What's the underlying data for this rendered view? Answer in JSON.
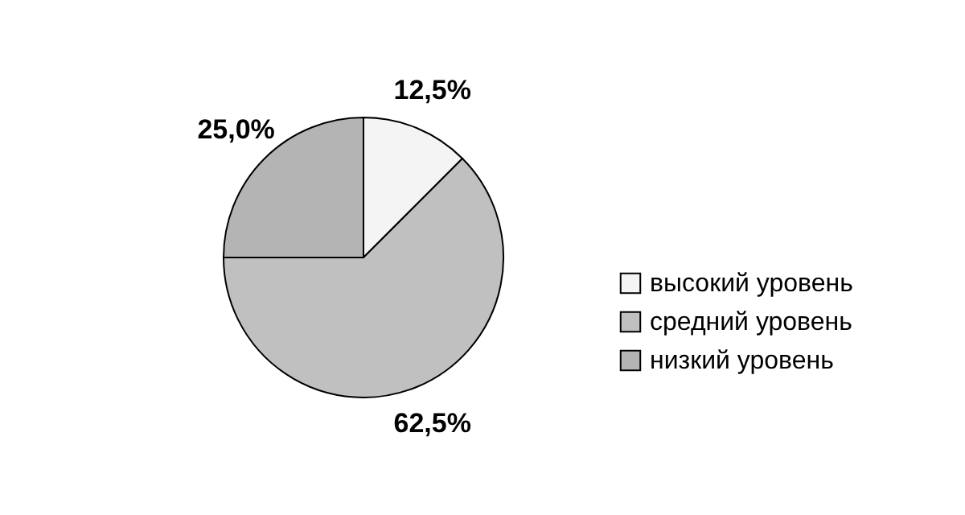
{
  "chart_data": {
    "type": "pie",
    "categories": [
      "высокий уровень",
      "средний уровень",
      "низкий уровень"
    ],
    "values": [
      12.5,
      62.5,
      25.0
    ],
    "colors": [
      "#f4f4f4",
      "#c0c0c0",
      "#b4b4b4"
    ],
    "value_labels": [
      "12,5%",
      "62,5%",
      "25,0%"
    ],
    "legend": "right"
  }
}
